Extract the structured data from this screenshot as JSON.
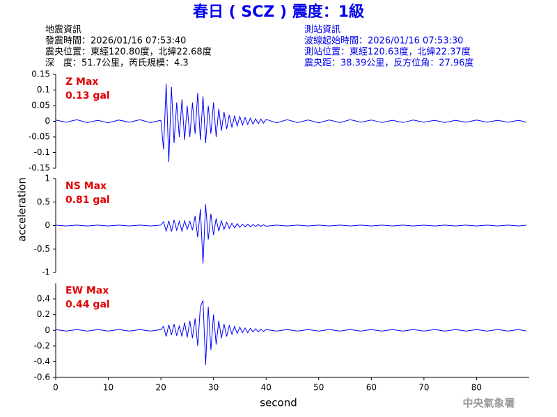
{
  "title": "春日 ( SCZ ) 震度：1級",
  "event_info": [
    "地震資訊",
    "發震時間：2026/01/16 07:53:40",
    "震央位置：東經120.80度，北緯22.68度",
    "深　度：51.7公里，芮氏規模：4.3"
  ],
  "station_info": [
    "測站資訊",
    "波線起始時間：2026/01/16 07:53:30",
    "測站位置：東經120.63度，北緯22.37度",
    "震央距：38.39公里，反方位角：27.96度"
  ],
  "footer": "中央氣象署",
  "chart_data": [
    {
      "type": "line",
      "annotation": "Z Max",
      "max_label": "0.13 gal",
      "xlim": [
        0,
        90
      ],
      "ylim": [
        -0.15,
        0.15
      ],
      "yticks": [
        0.15,
        0.1,
        0.05,
        0,
        -0.05,
        -0.1,
        -0.15
      ],
      "x": [
        0,
        2,
        4,
        6,
        8,
        10,
        12,
        14,
        16,
        18,
        20,
        20.5,
        21,
        21.5,
        22,
        22.5,
        23,
        23.5,
        24,
        24.5,
        25,
        25.5,
        26,
        26.5,
        27,
        27.5,
        28,
        28.5,
        29,
        29.5,
        30,
        30.5,
        31,
        31.5,
        32,
        32.5,
        33,
        33.5,
        34,
        34.5,
        35,
        35.5,
        36,
        36.5,
        37,
        37.5,
        38,
        38.5,
        39,
        39.5,
        40,
        42,
        44,
        46,
        48,
        50,
        52,
        54,
        56,
        58,
        60,
        62,
        64,
        66,
        68,
        70,
        72,
        74,
        76,
        78,
        80,
        82,
        84,
        86,
        88,
        89.5
      ],
      "series": [
        {
          "color": "#0000ff",
          "values": [
            0.004,
            -0.003,
            0.005,
            -0.004,
            0.003,
            -0.005,
            0.004,
            -0.003,
            0.005,
            -0.004,
            0.003,
            -0.09,
            0.12,
            -0.13,
            0.11,
            -0.07,
            0.06,
            -0.05,
            0.07,
            -0.06,
            0.05,
            -0.05,
            0.06,
            -0.04,
            0.09,
            -0.06,
            0.08,
            -0.07,
            0.05,
            -0.04,
            0.06,
            -0.05,
            0.04,
            -0.03,
            0.03,
            -0.025,
            0.02,
            -0.02,
            0.018,
            -0.015,
            0.015,
            -0.012,
            0.012,
            -0.01,
            0.01,
            -0.009,
            0.008,
            -0.008,
            0.007,
            -0.006,
            0.006,
            -0.005,
            0.005,
            -0.004,
            0.004,
            -0.005,
            0.004,
            -0.004,
            0.005,
            -0.003,
            0.004,
            -0.004,
            0.003,
            -0.004,
            0.004,
            -0.003,
            0.003,
            -0.004,
            0.003,
            -0.003,
            0.004,
            -0.003,
            0.003,
            -0.003,
            0.003,
            -0.003
          ]
        }
      ]
    },
    {
      "type": "line",
      "annotation": "NS Max",
      "max_label": "0.81 gal",
      "ylabel": "acceleration",
      "xlim": [
        0,
        90
      ],
      "ylim": [
        -1,
        1
      ],
      "yticks": [
        1,
        0.5,
        0,
        -0.5,
        -1
      ],
      "x": [
        0,
        2,
        4,
        6,
        8,
        10,
        12,
        14,
        16,
        18,
        20,
        20.5,
        21,
        21.5,
        22,
        22.5,
        23,
        23.5,
        24,
        24.5,
        25,
        25.5,
        26,
        26.5,
        27,
        27.5,
        28,
        28.5,
        29,
        29.5,
        30,
        30.5,
        31,
        31.5,
        32,
        32.5,
        33,
        33.5,
        34,
        34.5,
        35,
        35.5,
        36,
        36.5,
        37,
        37.5,
        38,
        38.5,
        39,
        39.5,
        40,
        42,
        44,
        46,
        48,
        50,
        52,
        54,
        56,
        58,
        60,
        62,
        64,
        66,
        68,
        70,
        72,
        74,
        76,
        78,
        80,
        82,
        84,
        86,
        88,
        89.5
      ],
      "series": [
        {
          "color": "#0000ff",
          "values": [
            0.01,
            -0.01,
            0.01,
            -0.01,
            0.01,
            -0.01,
            0.01,
            -0.01,
            0.01,
            -0.01,
            0.01,
            0.08,
            -0.12,
            0.1,
            -0.13,
            0.12,
            -0.1,
            0.09,
            -0.12,
            0.1,
            -0.08,
            0.09,
            -0.1,
            0.2,
            -0.25,
            0.35,
            -0.81,
            0.45,
            -0.3,
            0.25,
            -0.2,
            0.15,
            -0.12,
            0.1,
            -0.08,
            0.07,
            -0.06,
            0.05,
            -0.05,
            0.04,
            -0.04,
            0.03,
            -0.03,
            0.03,
            -0.025,
            0.02,
            -0.02,
            0.02,
            -0.015,
            0.015,
            -0.015,
            0.01,
            -0.01,
            0.01,
            -0.01,
            0.01,
            -0.01,
            0.01,
            -0.01,
            0.01,
            -0.01,
            0.01,
            -0.01,
            0.01,
            -0.01,
            0.01,
            -0.01,
            0.01,
            -0.01,
            0.01,
            -0.01,
            0.01,
            -0.01,
            0.01,
            -0.01,
            0.01
          ]
        }
      ]
    },
    {
      "type": "line",
      "annotation": "EW Max",
      "max_label": "0.44 gal",
      "xlabel": "second",
      "xlim": [
        0,
        90
      ],
      "xticks": [
        0,
        10,
        20,
        30,
        40,
        50,
        60,
        70,
        80
      ],
      "ylim": [
        -0.6,
        0.6
      ],
      "yticks": [
        0.4,
        0.2,
        0,
        -0.2,
        -0.4,
        -0.6
      ],
      "x": [
        0,
        2,
        4,
        6,
        8,
        10,
        12,
        14,
        16,
        18,
        20,
        20.5,
        21,
        21.5,
        22,
        22.5,
        23,
        23.5,
        24,
        24.5,
        25,
        25.5,
        26,
        26.5,
        27,
        27.5,
        28,
        28.5,
        29,
        29.5,
        30,
        30.5,
        31,
        31.5,
        32,
        32.5,
        33,
        33.5,
        34,
        34.5,
        35,
        35.5,
        36,
        36.5,
        37,
        37.5,
        38,
        38.5,
        39,
        39.5,
        40,
        42,
        44,
        46,
        48,
        50,
        52,
        54,
        56,
        58,
        60,
        62,
        64,
        66,
        68,
        70,
        72,
        74,
        76,
        78,
        80,
        82,
        84,
        86,
        88,
        89.5
      ],
      "series": [
        {
          "color": "#0000ff",
          "values": [
            0.01,
            -0.01,
            0.01,
            -0.01,
            0.01,
            -0.01,
            0.01,
            -0.01,
            0.01,
            -0.01,
            0.01,
            0.05,
            -0.08,
            0.07,
            -0.06,
            0.08,
            -0.07,
            0.06,
            -0.08,
            0.1,
            -0.09,
            0.12,
            -0.1,
            0.15,
            -0.2,
            0.3,
            0.38,
            -0.44,
            0.3,
            -0.25,
            0.2,
            -0.18,
            0.12,
            -0.1,
            0.08,
            -0.08,
            0.06,
            -0.05,
            0.05,
            -0.04,
            0.04,
            -0.03,
            0.03,
            -0.03,
            0.025,
            -0.02,
            0.02,
            -0.02,
            0.015,
            -0.015,
            0.01,
            -0.01,
            0.01,
            -0.01,
            0.01,
            -0.01,
            0.01,
            -0.01,
            0.01,
            -0.01,
            0.01,
            -0.01,
            0.01,
            -0.01,
            0.01,
            -0.01,
            0.01,
            -0.01,
            0.01,
            -0.01,
            0.01,
            -0.01,
            0.01,
            -0.01,
            0.01,
            -0.01
          ]
        }
      ]
    }
  ]
}
